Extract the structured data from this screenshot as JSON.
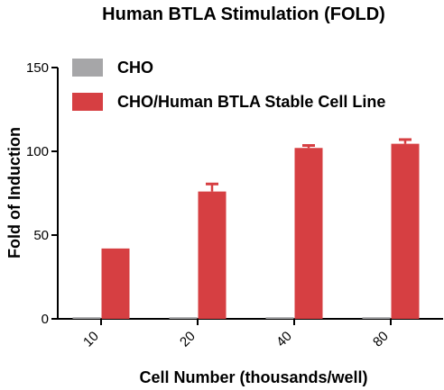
{
  "chart_data": {
    "type": "bar",
    "title": "Human BTLA Stimulation (FOLD)",
    "xlabel": "Cell Number (thousands/well)",
    "ylabel": "Fold of Induction",
    "categories": [
      "10",
      "20",
      "40",
      "80"
    ],
    "ylim": [
      0,
      150
    ],
    "yticks": [
      0,
      50,
      100,
      150
    ],
    "legend_position": "top-left",
    "grid": false,
    "error_bars": true,
    "series": [
      {
        "name": "CHO",
        "values": [
          1,
          1,
          1,
          1
        ],
        "errors": [
          0,
          0,
          0,
          0
        ],
        "color": "#a6a6a8"
      },
      {
        "name": "CHO/Human BTLA Stable Cell Line",
        "values": [
          42,
          76,
          102,
          104.5
        ],
        "errors": [
          0,
          4.5,
          1.5,
          2.5
        ],
        "color": "#d63f42"
      }
    ]
  }
}
